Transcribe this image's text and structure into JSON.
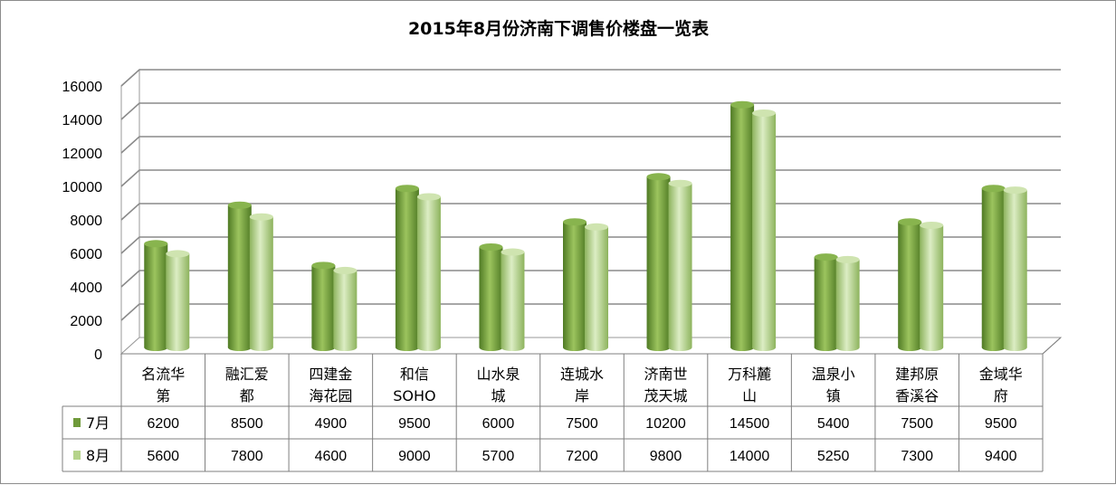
{
  "chart_data": {
    "type": "bar",
    "title": "2015年8月份济南下调售价楼盘一览表",
    "categories": [
      [
        "名流华",
        "第"
      ],
      [
        "融汇爱",
        "都"
      ],
      [
        "四建金",
        "海花园"
      ],
      [
        "和信",
        "SOHO"
      ],
      [
        "山水泉",
        "城"
      ],
      [
        "连城水",
        "岸"
      ],
      [
        "济南世",
        "茂天城"
      ],
      [
        "万科麓",
        "山"
      ],
      [
        "温泉小",
        "镇"
      ],
      [
        "建邦原",
        "香溪谷"
      ],
      [
        "金域华",
        "府"
      ]
    ],
    "series": [
      {
        "name": "7月",
        "color": "#6f9a3a",
        "values": [
          6200,
          8500,
          4900,
          9500,
          6000,
          7500,
          10200,
          14500,
          5400,
          7500,
          9500
        ]
      },
      {
        "name": "8月",
        "color": "#b5d38a",
        "values": [
          5600,
          7800,
          4600,
          9000,
          5700,
          7200,
          9800,
          14000,
          5250,
          7300,
          9400
        ]
      }
    ],
    "ylim": [
      0,
      16000
    ],
    "yticks": [
      0,
      2000,
      4000,
      6000,
      8000,
      10000,
      12000,
      14000,
      16000
    ],
    "grid": true,
    "legend": "data-table",
    "data_table": true
  }
}
